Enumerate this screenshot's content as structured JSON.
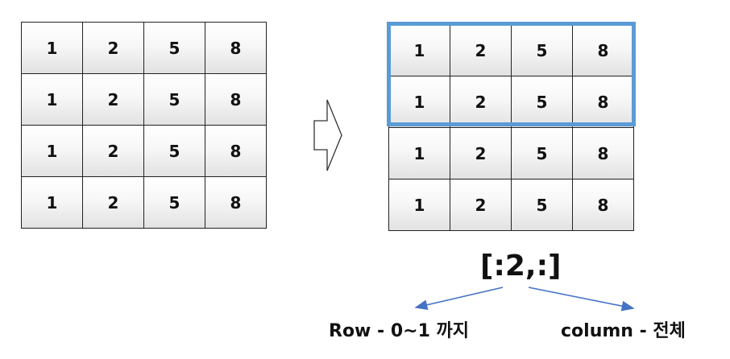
{
  "left_matrix": {
    "rows": [
      [
        "1",
        "2",
        "5",
        "8"
      ],
      [
        "1",
        "2",
        "5",
        "8"
      ],
      [
        "1",
        "2",
        "5",
        "8"
      ],
      [
        "1",
        "2",
        "5",
        "8"
      ]
    ]
  },
  "right_matrix": {
    "rows": [
      [
        "1",
        "2",
        "5",
        "8"
      ],
      [
        "1",
        "2",
        "5",
        "8"
      ],
      [
        "1",
        "2",
        "5",
        "8"
      ],
      [
        "1",
        "2",
        "5",
        "8"
      ]
    ],
    "highlighted_rows": 2
  },
  "slice_expression": "[:2,:]",
  "row_label": "Row - 0~1 까지",
  "column_label": "column - 전체",
  "colors": {
    "highlight": "#5b9bd5",
    "connector": "#4472c4"
  }
}
